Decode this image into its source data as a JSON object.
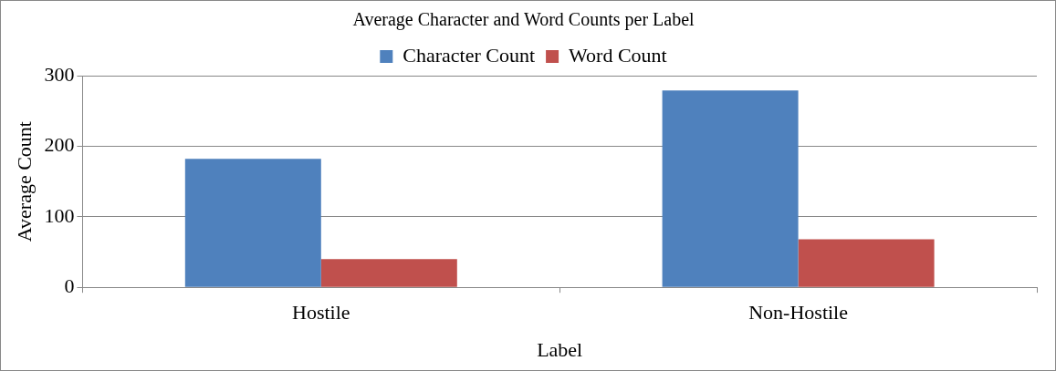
{
  "chart_data": {
    "type": "bar",
    "title": "Average Character and Word Counts per Label",
    "xlabel": "Label",
    "ylabel": "Average Count",
    "categories": [
      "Hostile",
      "Non-Hostile"
    ],
    "series": [
      {
        "name": "Character Count",
        "color": "#4f81bd",
        "values": [
          182,
          279
        ]
      },
      {
        "name": "Word Count",
        "color": "#c0504d",
        "values": [
          40,
          68
        ]
      }
    ],
    "ylim": [
      0,
      300
    ],
    "yticks": [
      0,
      100,
      200,
      300
    ],
    "grid": "y",
    "legend": "top"
  }
}
